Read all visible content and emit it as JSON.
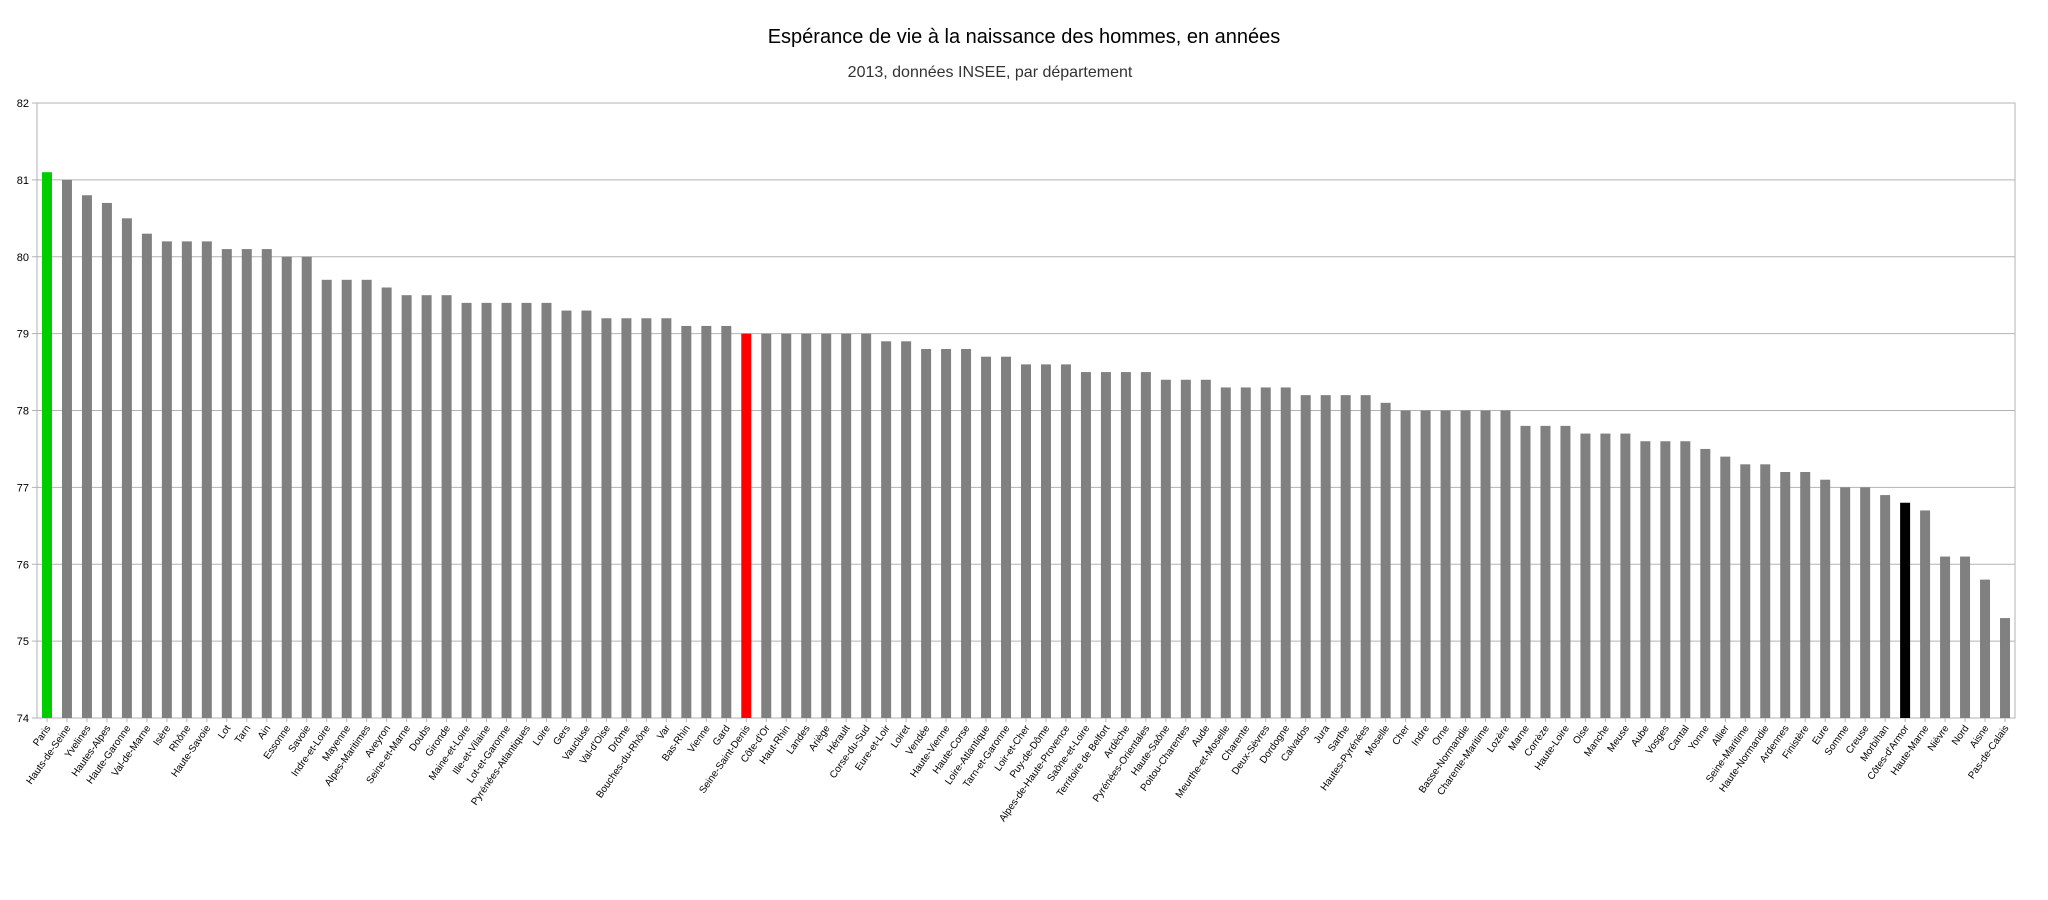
{
  "chart_data": {
    "type": "bar",
    "title": "Espérance de vie à la naissance des hommes, en années",
    "subtitle": "2013, données INSEE, par département",
    "xlabel": "",
    "ylabel": "",
    "ylim": [
      74,
      82
    ],
    "yticks": [
      74,
      75,
      76,
      77,
      78,
      79,
      80,
      81,
      82
    ],
    "grid": true,
    "default_color": "#808080",
    "highlight_colors": {
      "Paris": "#00cc00",
      "Seine-Saint-Denis": "#ff0000",
      "Côtes-d'Armor": "#000000"
    },
    "categories": [
      "Paris",
      "Hauts-de-Seine",
      "Yvelines",
      "Hautes-Alpes",
      "Haute-Garonne",
      "Val-de-Marne",
      "Isère",
      "Rhône",
      "Haute-Savoie",
      "Lot",
      "Tarn",
      "Ain",
      "Essonne",
      "Savoie",
      "Indre-et-Loire",
      "Mayenne",
      "Alpes-Maritimes",
      "Aveyron",
      "Seine-et-Marne",
      "Doubs",
      "Gironde",
      "Maine-et-Loire",
      "Ille-et-Vilaine",
      "Lot-et-Garonne",
      "Pyrénées-Atlantiques",
      "Loire",
      "Gers",
      "Vaucluse",
      "Val-d'Oise",
      "Drôme",
      "Bouches-du-Rhône",
      "Var",
      "Bas-Rhin",
      "Vienne",
      "Gard",
      "Seine-Saint-Denis",
      "Côte-d'Or",
      "Haut-Rhin",
      "Landes",
      "Ariège",
      "Hérault",
      "Corse-du-Sud",
      "Eure-et-Loir",
      "Loiret",
      "Vendée",
      "Haute-Vienne",
      "Haute-Corse",
      "Loire-Atlantique",
      "Tarn-et-Garonne",
      "Loir-et-Cher",
      "Puy-de-Dôme",
      "Alpes-de-Haute-Provence",
      "Saône-et-Loire",
      "Territoire de Belfort",
      "Ardèche",
      "Pyrénées-Orientales",
      "Haute-Saône",
      "Poitou-Charentes",
      "Aude",
      "Meurthe-et-Moselle",
      "Charente",
      "Deux-Sèvres",
      "Dordogne",
      "Calvados",
      "Jura",
      "Sarthe",
      "Hautes-Pyrénées",
      "Moselle",
      "Cher",
      "Indre",
      "Orne",
      "Basse-Normandie",
      "Charente-Maritime",
      "Lozère",
      "Marne",
      "Corrèze",
      "Haute-Loire",
      "Oise",
      "Manche",
      "Meuse",
      "Aube",
      "Vosges",
      "Cantal",
      "Yonne",
      "Allier",
      "Seine-Maritime",
      "Haute-Normandie",
      "Ardennes",
      "Finistère",
      "Eure",
      "Somme",
      "Creuse",
      "Morbihan",
      "Côtes-d'Armor",
      "Haute-Marne",
      "Nièvre",
      "Nord",
      "Aisne",
      "Pas-de-Calais"
    ],
    "values": [
      81.1,
      81.0,
      80.8,
      80.7,
      80.5,
      80.3,
      80.2,
      80.2,
      80.2,
      80.1,
      80.1,
      80.1,
      80.0,
      80.0,
      79.7,
      79.7,
      79.7,
      79.6,
      79.5,
      79.5,
      79.5,
      79.4,
      79.4,
      79.4,
      79.4,
      79.4,
      79.3,
      79.3,
      79.2,
      79.2,
      79.2,
      79.2,
      79.1,
      79.1,
      79.1,
      79.0,
      79.0,
      79.0,
      79.0,
      79.0,
      79.0,
      79.0,
      78.9,
      78.9,
      78.8,
      78.8,
      78.8,
      78.7,
      78.7,
      78.6,
      78.6,
      78.6,
      78.5,
      78.5,
      78.5,
      78.5,
      78.4,
      78.4,
      78.4,
      78.3,
      78.3,
      78.3,
      78.3,
      78.2,
      78.2,
      78.2,
      78.2,
      78.1,
      78.0,
      78.0,
      78.0,
      78.0,
      78.0,
      78.0,
      77.8,
      77.8,
      77.8,
      77.7,
      77.7,
      77.7,
      77.6,
      77.6,
      77.6,
      77.5,
      77.4,
      77.3,
      77.3,
      77.2,
      77.2,
      77.1,
      77.0,
      77.0,
      76.9,
      76.8,
      76.7,
      76.1,
      76.1,
      75.8,
      75.3
    ]
  }
}
